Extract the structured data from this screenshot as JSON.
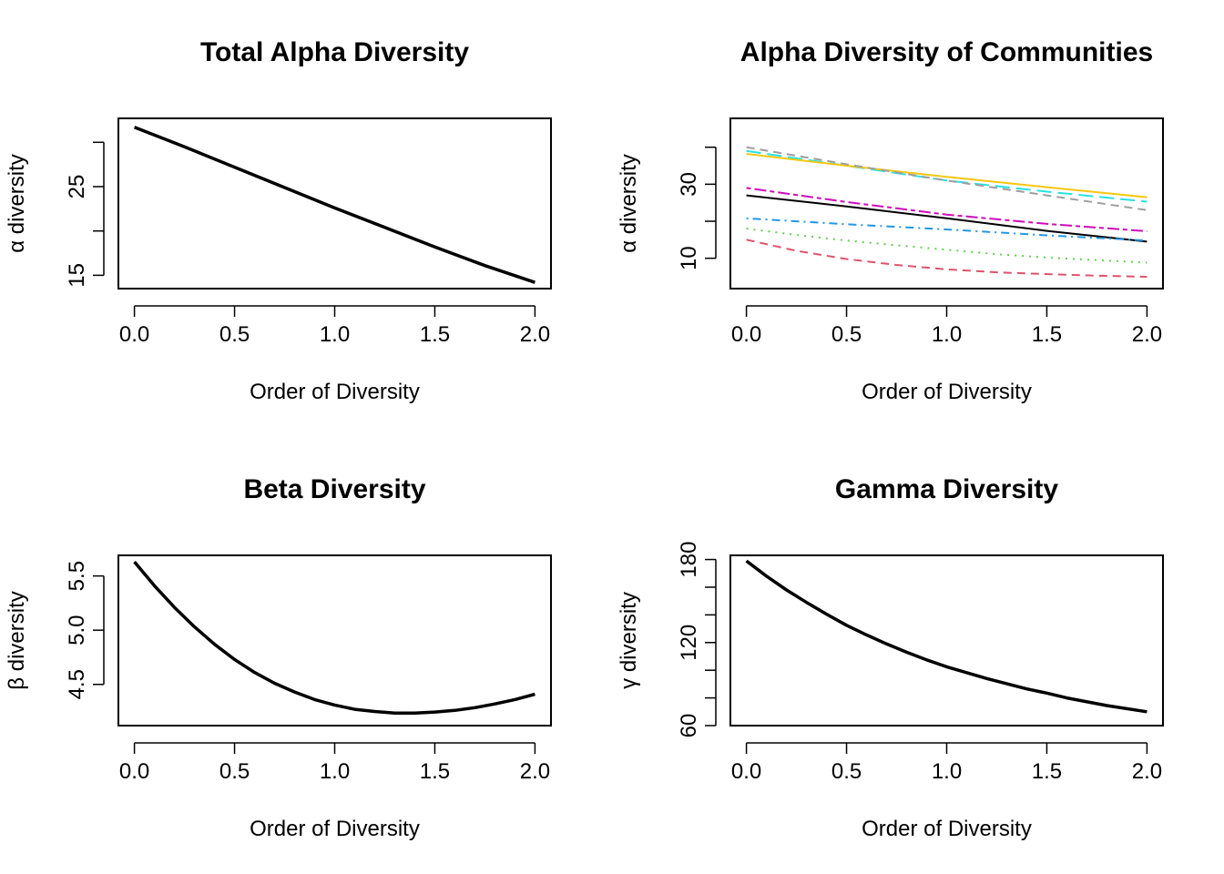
{
  "chart_data": [
    {
      "type": "line",
      "title": "Total Alpha Diversity",
      "xlabel": "Order of Diversity",
      "ylabel": "α diversity",
      "xlim": [
        -0.08,
        2.08
      ],
      "ylim": [
        13.5,
        32.7
      ],
      "xticks": [
        0.0,
        0.5,
        1.0,
        1.5,
        2.0
      ],
      "xtick_labels": [
        "0.0",
        "0.5",
        "1.0",
        "1.5",
        "2.0"
      ],
      "yticks": [
        15,
        20,
        25,
        30
      ],
      "ytick_labels": [
        "15",
        "",
        "25",
        ""
      ],
      "series": [
        {
          "color": "#000000",
          "dash": "solid",
          "width": "thick",
          "x": [
            0.0,
            0.25,
            0.5,
            0.75,
            1.0,
            1.25,
            1.5,
            1.75,
            2.0
          ],
          "y": [
            31.7,
            29.5,
            27.2,
            24.9,
            22.6,
            20.4,
            18.2,
            16.1,
            14.2
          ]
        }
      ]
    },
    {
      "type": "line",
      "title": "Alpha Diversity of Communities",
      "xlabel": "Order of Diversity",
      "ylabel": "α diversity",
      "xlim": [
        -0.08,
        2.08
      ],
      "ylim": [
        1.8,
        47.8
      ],
      "xticks": [
        0.0,
        0.5,
        1.0,
        1.5,
        2.0
      ],
      "xtick_labels": [
        "0.0",
        "0.5",
        "1.0",
        "1.5",
        "2.0"
      ],
      "yticks": [
        10,
        20,
        30,
        40
      ],
      "ytick_labels": [
        "10",
        "",
        "30",
        ""
      ],
      "series": [
        {
          "color": "#000000",
          "dash": "solid",
          "x": [
            0.0,
            0.5,
            1.0,
            1.5,
            2.0
          ],
          "y": [
            27.0,
            24.0,
            20.8,
            17.4,
            14.5
          ]
        },
        {
          "color": "#DF536B",
          "dash": "dashed",
          "x": [
            0.0,
            0.25,
            0.5,
            0.75,
            1.0,
            1.25,
            1.5,
            1.75,
            2.0
          ],
          "y": [
            15.0,
            12.0,
            9.8,
            8.2,
            7.0,
            6.2,
            5.7,
            5.3,
            5.0
          ]
        },
        {
          "color": "#61D04F",
          "dash": "dotted",
          "x": [
            0.0,
            0.25,
            0.5,
            0.75,
            1.0,
            1.25,
            1.5,
            1.75,
            2.0
          ],
          "y": [
            18.0,
            16.3,
            14.8,
            13.5,
            12.3,
            11.1,
            10.2,
            9.5,
            8.8
          ]
        },
        {
          "color": "#2297E6",
          "dash": "dotdash",
          "x": [
            0.0,
            0.5,
            1.0,
            1.5,
            2.0
          ],
          "y": [
            20.8,
            19.2,
            17.8,
            16.2,
            14.8
          ]
        },
        {
          "color": "#28E2E5",
          "dash": "longdash",
          "x": [
            0.0,
            0.5,
            1.0,
            1.5,
            2.0
          ],
          "y": [
            39.0,
            35.0,
            31.0,
            28.0,
            25.3
          ]
        },
        {
          "color": "#CD0BBC",
          "dash": "twodash",
          "x": [
            0.0,
            0.5,
            1.0,
            1.5,
            2.0
          ],
          "y": [
            29.0,
            25.2,
            21.8,
            19.3,
            17.3
          ]
        },
        {
          "color": "#F5C710",
          "dash": "solid",
          "x": [
            0.0,
            0.5,
            1.0,
            1.5,
            2.0
          ],
          "y": [
            38.2,
            35.0,
            32.0,
            29.2,
            26.5
          ]
        },
        {
          "color": "#9E9E9E",
          "dash": "dashed",
          "x": [
            0.0,
            0.5,
            1.0,
            1.5,
            2.0
          ],
          "y": [
            40.0,
            35.4,
            31.0,
            27.0,
            23.0
          ]
        }
      ]
    },
    {
      "type": "line",
      "title": "Beta Diversity",
      "xlabel": "Order of Diversity",
      "ylabel": "β diversity",
      "xlim": [
        -0.08,
        2.08
      ],
      "ylim": [
        4.12,
        5.69
      ],
      "xticks": [
        0.0,
        0.5,
        1.0,
        1.5,
        2.0
      ],
      "xtick_labels": [
        "0.0",
        "0.5",
        "1.0",
        "1.5",
        "2.0"
      ],
      "yticks": [
        4.5,
        5.0,
        5.5
      ],
      "ytick_labels": [
        "4.5",
        "5.0",
        "5.5"
      ],
      "series": [
        {
          "color": "#000000",
          "dash": "solid",
          "width": "thick",
          "x": [
            0.0,
            0.1,
            0.2,
            0.3,
            0.4,
            0.5,
            0.6,
            0.7,
            0.8,
            0.9,
            1.0,
            1.1,
            1.2,
            1.3,
            1.4,
            1.5,
            1.6,
            1.7,
            1.8,
            1.9,
            2.0
          ],
          "y": [
            5.63,
            5.41,
            5.21,
            5.03,
            4.87,
            4.73,
            4.61,
            4.51,
            4.43,
            4.36,
            4.31,
            4.27,
            4.25,
            4.235,
            4.235,
            4.245,
            4.26,
            4.285,
            4.32,
            4.36,
            4.41
          ]
        }
      ]
    },
    {
      "type": "line",
      "title": "Gamma Diversity",
      "xlabel": "Order of Diversity",
      "ylabel": "γ diversity",
      "xlim": [
        -0.08,
        2.08
      ],
      "ylim": [
        60,
        183
      ],
      "xticks": [
        0.0,
        0.5,
        1.0,
        1.5,
        2.0
      ],
      "xtick_labels": [
        "0.0",
        "0.5",
        "1.0",
        "1.5",
        "2.0"
      ],
      "yticks": [
        60,
        80,
        100,
        120,
        140,
        160,
        180
      ],
      "ytick_labels": [
        "60",
        "",
        "",
        "120",
        "",
        "",
        "180"
      ],
      "series": [
        {
          "color": "#000000",
          "dash": "solid",
          "width": "thick",
          "x": [
            0.0,
            0.1,
            0.2,
            0.3,
            0.4,
            0.5,
            0.6,
            0.7,
            0.8,
            0.9,
            1.0,
            1.2,
            1.4,
            1.5,
            1.6,
            1.8,
            2.0
          ],
          "y": [
            179,
            168,
            158,
            149,
            140.5,
            132.5,
            125.5,
            119,
            113,
            107.5,
            102.5,
            94,
            86.5,
            83.5,
            80,
            74.5,
            70
          ]
        }
      ]
    }
  ]
}
